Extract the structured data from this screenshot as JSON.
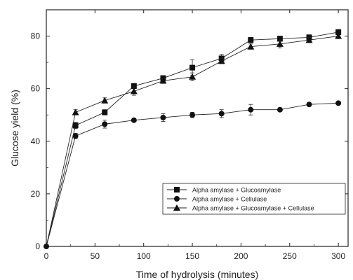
{
  "chart_data": {
    "type": "line",
    "title": "",
    "xlabel": "Time of hydrolysis (minutes)",
    "ylabel": "Glucose yield (%)",
    "xlim": [
      0,
      310
    ],
    "ylim": [
      0,
      90
    ],
    "xticks": [
      0,
      50,
      100,
      150,
      200,
      250,
      300
    ],
    "yticks": [
      0,
      20,
      40,
      60,
      80
    ],
    "grid": false,
    "legend_position": "lower-right",
    "colors": {
      "line": "#222222",
      "marker": "#111111",
      "axis": "#222222"
    },
    "series": [
      {
        "name": "Alpha amylase + Glucoamylase",
        "marker": "square",
        "x": [
          0,
          30,
          60,
          90,
          120,
          150,
          180,
          210,
          240,
          270,
          300
        ],
        "y": [
          0,
          46,
          51,
          61,
          64,
          68,
          71.5,
          78.5,
          79,
          79.5,
          81.5
        ],
        "err": [
          0,
          1.2,
          1,
          1,
          1,
          3,
          1.5,
          1,
          1,
          1,
          1
        ]
      },
      {
        "name": "Alpha amylase + Cellulase",
        "marker": "circle",
        "x": [
          0,
          30,
          60,
          90,
          120,
          150,
          180,
          210,
          240,
          270,
          300
        ],
        "y": [
          0,
          42,
          46.5,
          48,
          49,
          50,
          50.5,
          52,
          52,
          54,
          54.5
        ],
        "err": [
          0,
          1,
          1.5,
          0.5,
          1.5,
          1,
          1.5,
          2,
          0.5,
          0.5,
          0.5
        ]
      },
      {
        "name": "Alpha amylase + Glucoamylase + Cellulase",
        "marker": "triangle",
        "x": [
          0,
          30,
          60,
          90,
          120,
          150,
          180,
          210,
          240,
          270,
          300
        ],
        "y": [
          0,
          51,
          55.5,
          59,
          63,
          64.5,
          70.5,
          76,
          77,
          78.5,
          80
        ],
        "err": [
          0,
          1,
          1,
          1.5,
          1,
          1.5,
          1,
          1,
          1.5,
          1,
          1
        ]
      }
    ]
  }
}
